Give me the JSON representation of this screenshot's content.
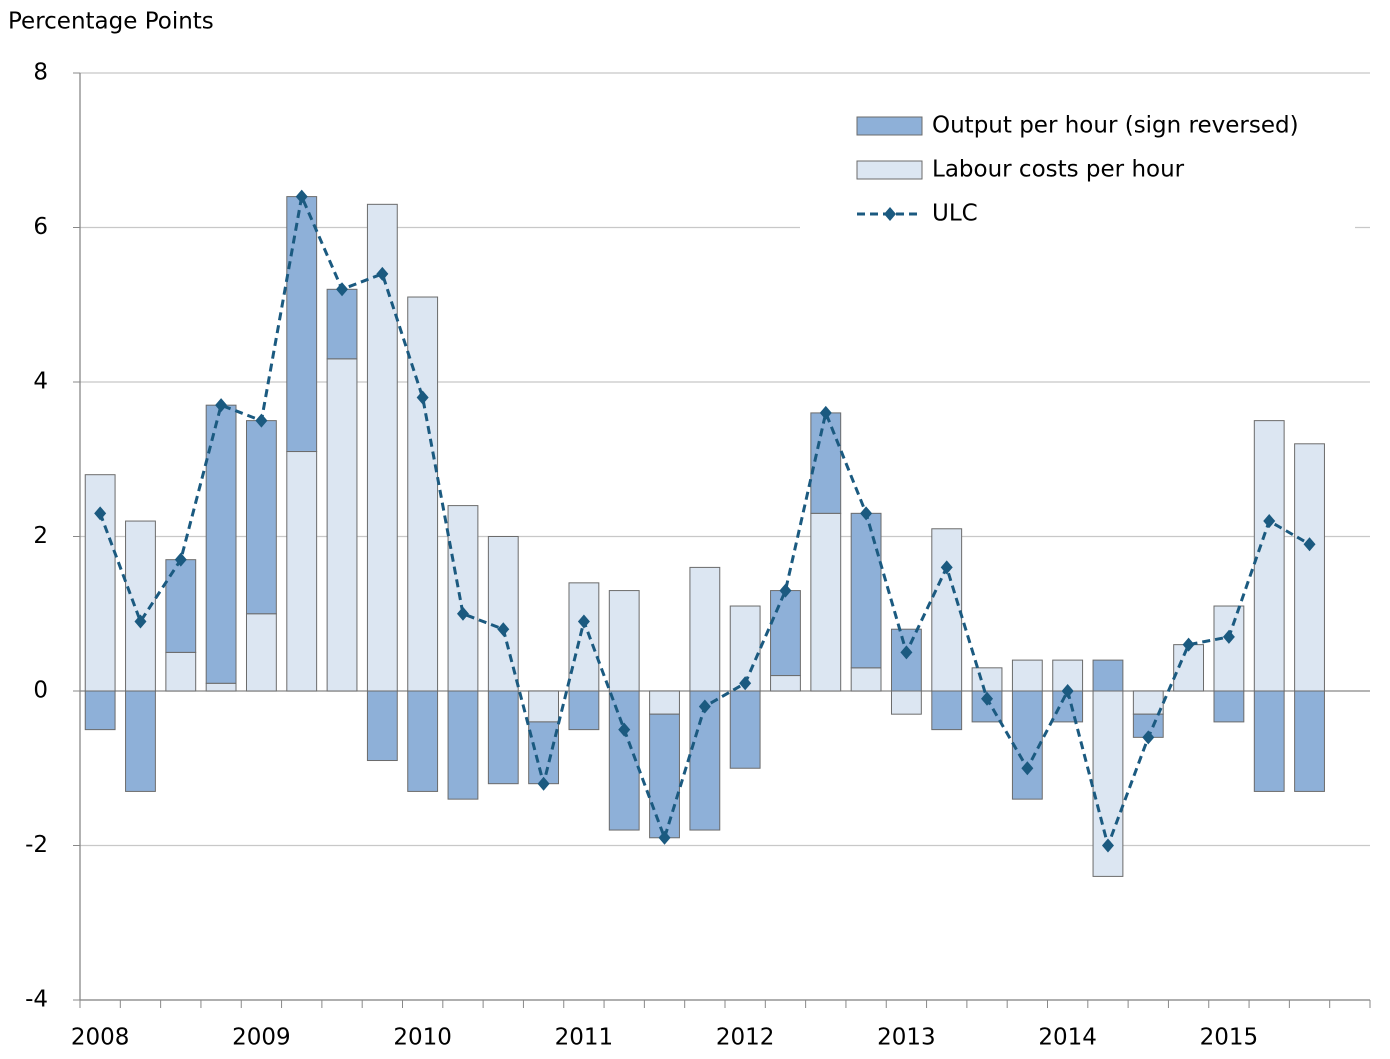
{
  "chart_data": {
    "type": "bar",
    "y_label": "Percentage Points",
    "categories": [
      "2008",
      null,
      null,
      null,
      "2009",
      null,
      null,
      null,
      "2010",
      null,
      null,
      null,
      "2011",
      null,
      null,
      null,
      "2012",
      null,
      null,
      null,
      "2013",
      null,
      null,
      null,
      "2014",
      null,
      null,
      null,
      "2015",
      null,
      null,
      null
    ],
    "series": [
      {
        "name": "Output per hour (sign reversed)",
        "color": "#8eb0d8",
        "type": "bar",
        "values": [
          -0.5,
          -1.3,
          1.2,
          3.6,
          2.5,
          3.3,
          0.9,
          -0.9,
          -1.3,
          -1.4,
          -1.2,
          -0.8,
          -0.5,
          -1.8,
          -1.6,
          -1.8,
          -1.0,
          1.1,
          1.3,
          2.0,
          0.8,
          -0.5,
          -0.4,
          -1.4,
          -0.4,
          0.4,
          -0.3,
          0,
          -0.4,
          -1.3,
          -1.3,
          null
        ]
      },
      {
        "name": "Labour costs per hour",
        "color": "#dce6f2",
        "type": "bar",
        "values": [
          2.8,
          2.2,
          0.5,
          0.1,
          1.0,
          3.1,
          4.3,
          6.3,
          5.1,
          2.4,
          2.0,
          -0.4,
          1.4,
          1.3,
          -0.3,
          1.6,
          1.1,
          0.2,
          2.3,
          0.3,
          -0.3,
          2.1,
          0.3,
          0.4,
          0.4,
          -2.4,
          -0.3,
          0.6,
          1.1,
          3.5,
          3.2,
          null
        ]
      },
      {
        "name": "ULC",
        "color": "#1b5a80",
        "type": "line",
        "dashed": true,
        "values": [
          2.3,
          0.9,
          1.7,
          3.7,
          3.5,
          6.4,
          5.2,
          5.4,
          3.8,
          1.0,
          0.8,
          -1.2,
          0.9,
          -0.5,
          -1.9,
          -0.2,
          0.1,
          1.3,
          3.6,
          2.3,
          0.5,
          1.6,
          -0.1,
          -1.0,
          0,
          -2.0,
          -0.6,
          0.6,
          0.7,
          2.2,
          1.9,
          null
        ]
      }
    ],
    "ylim": [
      -4,
      8
    ],
    "yticks": [
      -4,
      -2,
      0,
      2,
      4,
      6,
      8
    ],
    "grid": true,
    "legend": "top-right"
  }
}
